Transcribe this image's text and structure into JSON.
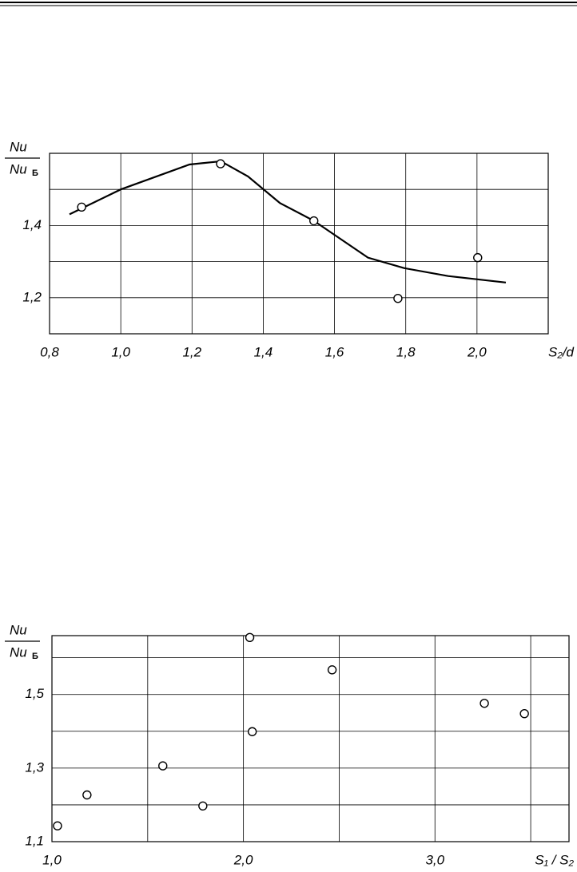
{
  "chart_data": [
    {
      "type": "line",
      "y_label_num": "Nu",
      "y_label_den": "Nu",
      "y_label_den_sub": "Б",
      "x_label": "S₂/d",
      "xlim": [
        0.8,
        2.2
      ],
      "ylim": [
        1.1,
        1.6
      ],
      "xticks": [
        {
          "value": 0.8,
          "label": "0,8"
        },
        {
          "value": 1.0,
          "label": "1,0"
        },
        {
          "value": 1.2,
          "label": "1,2"
        },
        {
          "value": 1.4,
          "label": "1,4"
        },
        {
          "value": 1.6,
          "label": "1,6"
        },
        {
          "value": 1.8,
          "label": "1,8"
        },
        {
          "value": 2.0,
          "label": "2,0"
        }
      ],
      "yticks": [
        {
          "value": 1.2,
          "label": "1,2"
        },
        {
          "value": 1.3,
          "label": null
        },
        {
          "value": 1.4,
          "label": "1,4"
        },
        {
          "value": 1.5,
          "label": null
        }
      ],
      "grid": true,
      "series": [
        {
          "type": "line",
          "color": "#000000",
          "x": [
            0.856,
            1.0,
            1.193,
            1.281,
            1.357,
            1.447,
            1.542,
            1.694,
            1.795,
            1.919,
            2.081
          ],
          "values": [
            1.431,
            1.5,
            1.569,
            1.578,
            1.536,
            1.462,
            1.413,
            1.311,
            1.282,
            1.26,
            1.242
          ]
        },
        {
          "type": "scatter",
          "color": "#000000",
          "x": [
            0.89,
            1.28,
            1.542,
            1.778,
            2.002
          ],
          "values": [
            1.451,
            1.571,
            1.413,
            1.198,
            1.311
          ]
        }
      ]
    },
    {
      "type": "scatter",
      "y_label_num": "Nu",
      "y_label_den": "Nu",
      "y_label_den_sub": "Б",
      "x_label": "S₁ / S₂",
      "xlim": [
        1.0,
        3.7
      ],
      "ylim": [
        1.1,
        1.66
      ],
      "xticks": [
        {
          "value": 1.0,
          "label": "1,0"
        },
        {
          "value": 1.5,
          "label": null
        },
        {
          "value": 2.0,
          "label": "2,0"
        },
        {
          "value": 2.5,
          "label": null
        },
        {
          "value": 3.0,
          "label": "3,0"
        },
        {
          "value": 3.5,
          "label": null
        }
      ],
      "yticks": [
        {
          "value": 1.1,
          "label": "1,1"
        },
        {
          "value": 1.2,
          "label": null
        },
        {
          "value": 1.3,
          "label": "1,3"
        },
        {
          "value": 1.4,
          "label": null
        },
        {
          "value": 1.5,
          "label": "1,5"
        },
        {
          "value": 1.6,
          "label": null
        }
      ],
      "grid": true,
      "series": [
        {
          "type": "scatter",
          "color": "#000000",
          "x": [
            1.029,
            1.183,
            1.579,
            1.788,
            2.033,
            2.046,
            2.463,
            3.258,
            3.467
          ],
          "values": [
            1.143,
            1.227,
            1.306,
            1.197,
            1.655,
            1.399,
            1.567,
            1.476,
            1.448
          ]
        }
      ]
    }
  ]
}
